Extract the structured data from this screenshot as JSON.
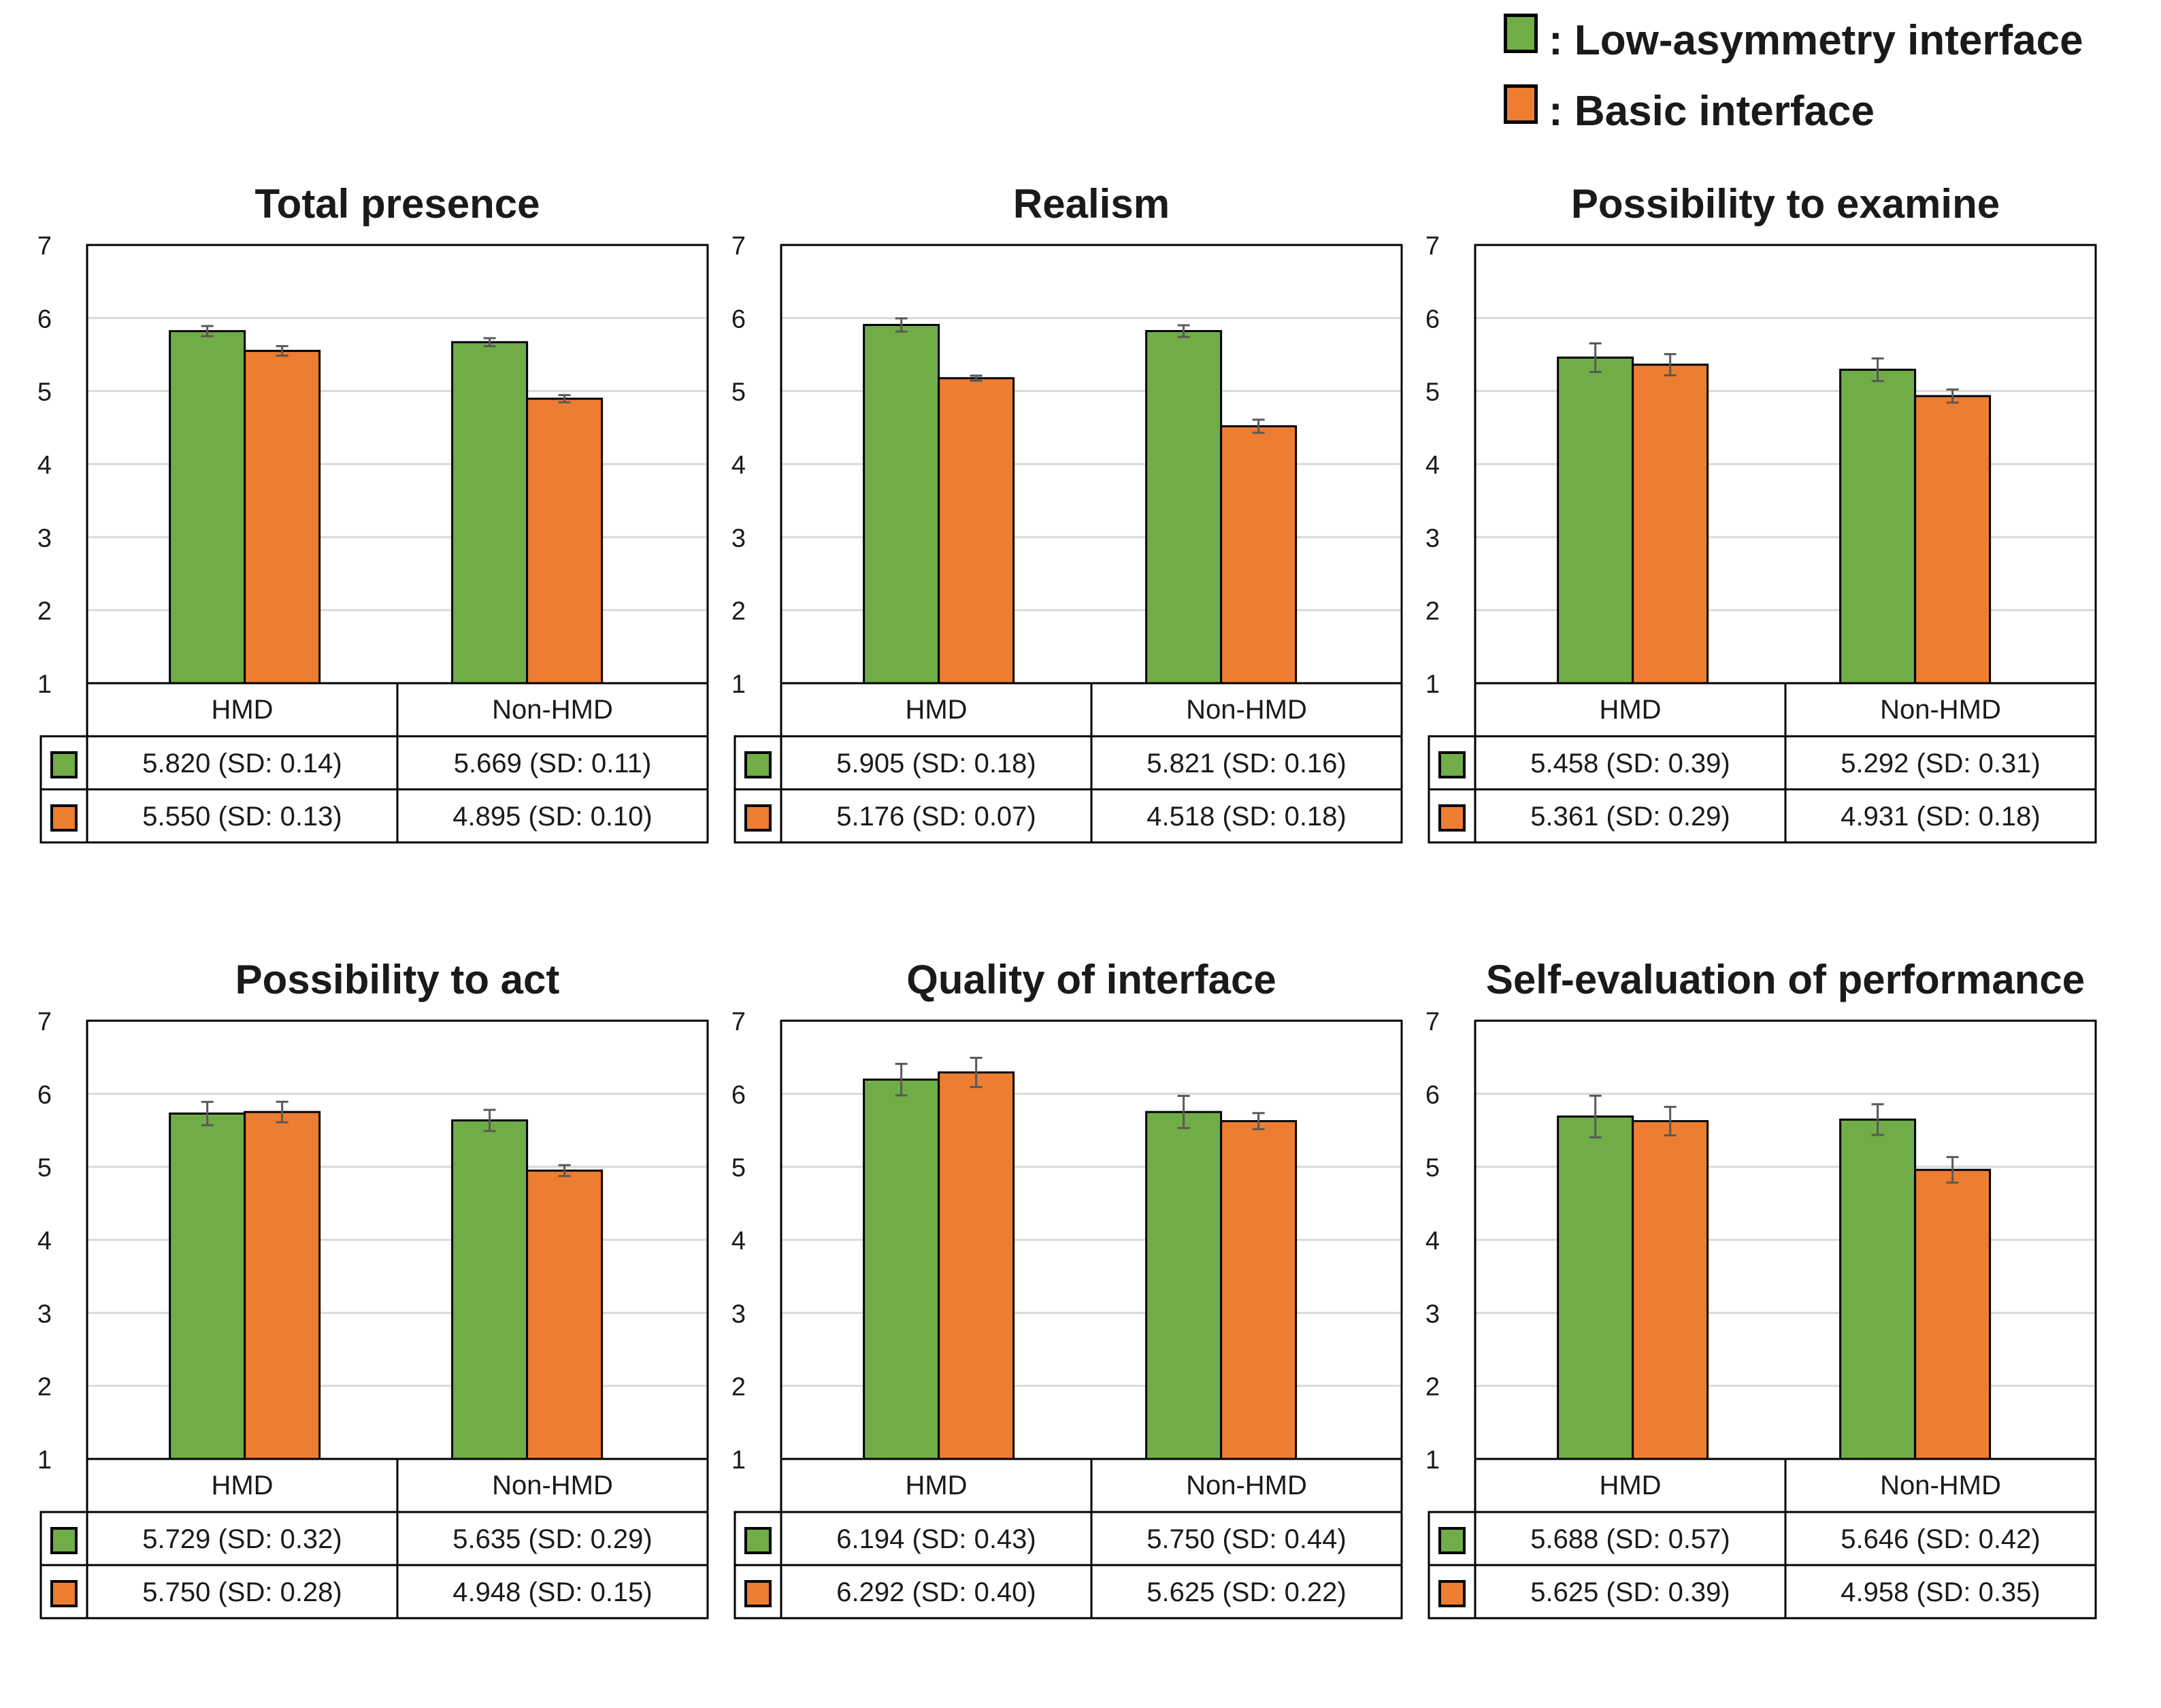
{
  "legend": {
    "items": [
      {
        "label": ": Low-asymmetry interface",
        "color": "#70ad47"
      },
      {
        "label": ": Basic interface",
        "color": "#ed7d31"
      }
    ]
  },
  "colors": {
    "low_asymmetry": "#70ad47",
    "basic": "#ed7d31",
    "grid": "#d9d9d9",
    "error_bar": "#595959"
  },
  "chart_data": [
    {
      "type": "bar",
      "title": "Total presence",
      "categories": [
        "HMD",
        "Non-HMD"
      ],
      "ylim": [
        1,
        7
      ],
      "yticks": [
        "1",
        "2",
        "3",
        "4",
        "5",
        "6",
        "7"
      ],
      "series": [
        {
          "name": "Low-asymmetry interface",
          "values": [
            5.82,
            5.669
          ],
          "sd": [
            0.14,
            0.11
          ],
          "labels": [
            "5.820 (SD: 0.14)",
            "5.669 (SD: 0.11)"
          ]
        },
        {
          "name": "Basic interface",
          "values": [
            5.55,
            4.895
          ],
          "sd": [
            0.13,
            0.1
          ],
          "labels": [
            "5.550 (SD: 0.13)",
            "4.895 (SD: 0.10)"
          ]
        }
      ]
    },
    {
      "type": "bar",
      "title": "Realism",
      "categories": [
        "HMD",
        "Non-HMD"
      ],
      "ylim": [
        1,
        7
      ],
      "yticks": [
        "1",
        "2",
        "3",
        "4",
        "5",
        "6",
        "7"
      ],
      "series": [
        {
          "name": "Low-asymmetry interface",
          "values": [
            5.905,
            5.821
          ],
          "sd": [
            0.18,
            0.16
          ],
          "labels": [
            "5.905 (SD: 0.18)",
            "5.821 (SD: 0.16)"
          ]
        },
        {
          "name": "Basic interface",
          "values": [
            5.176,
            4.518
          ],
          "sd": [
            0.07,
            0.18
          ],
          "labels": [
            "5.176 (SD: 0.07)",
            "4.518 (SD: 0.18)"
          ]
        }
      ]
    },
    {
      "type": "bar",
      "title": "Possibility to examine",
      "categories": [
        "HMD",
        "Non-HMD"
      ],
      "ylim": [
        1,
        7
      ],
      "yticks": [
        "1",
        "2",
        "3",
        "4",
        "5",
        "6",
        "7"
      ],
      "series": [
        {
          "name": "Low-asymmetry interface",
          "values": [
            5.458,
            5.292
          ],
          "sd": [
            0.39,
            0.31
          ],
          "labels": [
            "5.458 (SD: 0.39)",
            "5.292 (SD: 0.31)"
          ]
        },
        {
          "name": "Basic interface",
          "values": [
            5.361,
            4.931
          ],
          "sd": [
            0.29,
            0.18
          ],
          "labels": [
            "5.361 (SD: 0.29)",
            "4.931 (SD: 0.18)"
          ]
        }
      ]
    },
    {
      "type": "bar",
      "title": "Possibility to act",
      "categories": [
        "HMD",
        "Non-HMD"
      ],
      "ylim": [
        1,
        7
      ],
      "yticks": [
        "1",
        "2",
        "3",
        "4",
        "5",
        "6",
        "7"
      ],
      "series": [
        {
          "name": "Low-asymmetry interface",
          "values": [
            5.729,
            5.635
          ],
          "sd": [
            0.32,
            0.29
          ],
          "labels": [
            "5.729 (SD: 0.32)",
            "5.635 (SD: 0.29)"
          ]
        },
        {
          "name": "Basic interface",
          "values": [
            5.75,
            4.948
          ],
          "sd": [
            0.28,
            0.15
          ],
          "labels": [
            "5.750 (SD: 0.28)",
            "4.948 (SD: 0.15)"
          ]
        }
      ]
    },
    {
      "type": "bar",
      "title": "Quality of interface",
      "categories": [
        "HMD",
        "Non-HMD"
      ],
      "ylim": [
        1,
        7
      ],
      "yticks": [
        "1",
        "2",
        "3",
        "4",
        "5",
        "6",
        "7"
      ],
      "series": [
        {
          "name": "Low-asymmetry interface",
          "values": [
            6.194,
            5.75
          ],
          "sd": [
            0.43,
            0.44
          ],
          "labels": [
            "6.194 (SD: 0.43)",
            "5.750 (SD: 0.44)"
          ]
        },
        {
          "name": "Basic interface",
          "values": [
            6.292,
            5.625
          ],
          "sd": [
            0.4,
            0.22
          ],
          "labels": [
            "6.292 (SD: 0.40)",
            "5.625 (SD: 0.22)"
          ]
        }
      ]
    },
    {
      "type": "bar",
      "title": "Self-evaluation of performance",
      "categories": [
        "HMD",
        "Non-HMD"
      ],
      "ylim": [
        1,
        7
      ],
      "yticks": [
        "1",
        "2",
        "3",
        "4",
        "5",
        "6",
        "7"
      ],
      "series": [
        {
          "name": "Low-asymmetry interface",
          "values": [
            5.688,
            5.646
          ],
          "sd": [
            0.57,
            0.42
          ],
          "labels": [
            "5.688 (SD: 0.57)",
            "5.646 (SD: 0.42)"
          ]
        },
        {
          "name": "Basic interface",
          "values": [
            5.625,
            4.958
          ],
          "sd": [
            0.39,
            0.35
          ],
          "labels": [
            "5.625 (SD: 0.39)",
            "4.958 (SD: 0.35)"
          ]
        }
      ]
    }
  ]
}
